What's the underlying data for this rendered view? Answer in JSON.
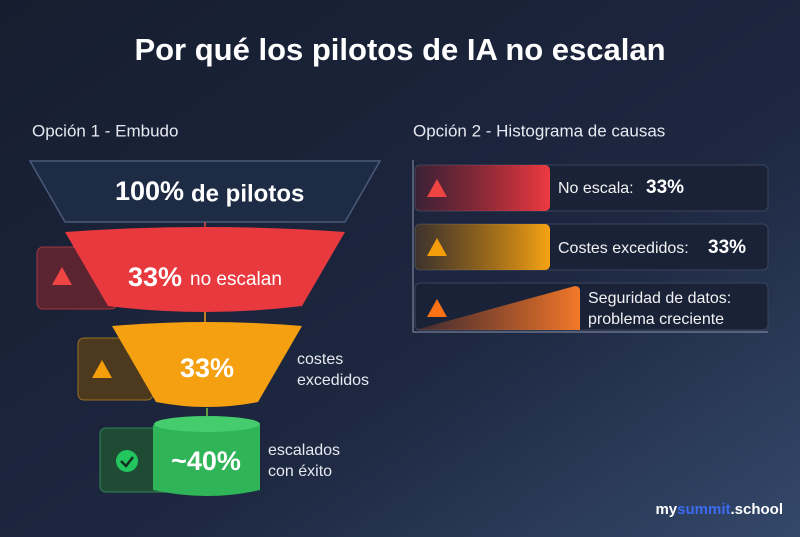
{
  "title": "Por qué los pilotos de IA no escalan",
  "funnel": {
    "heading": "Opción 1 - Embudo",
    "stages": [
      {
        "value": "100%",
        "label": "de pilotos"
      },
      {
        "value": "33%",
        "label": "no escalan"
      },
      {
        "value": "33%",
        "side_label": [
          "costes",
          "excedidos"
        ]
      },
      {
        "value": "~40%",
        "side_label": [
          "escalados",
          "con éxito"
        ]
      }
    ]
  },
  "causes": {
    "heading": "Opción 2 - Histograma de causas",
    "items": [
      {
        "label": "No escala:",
        "value": "33%"
      },
      {
        "label": "Costes excedidos:",
        "value": "33%"
      },
      {
        "label_lines": [
          "Seguridad de datos:",
          "problema creciente"
        ]
      }
    ]
  },
  "brand": {
    "prefix": "my",
    "highlight": "summit",
    "suffix": ".school"
  }
}
